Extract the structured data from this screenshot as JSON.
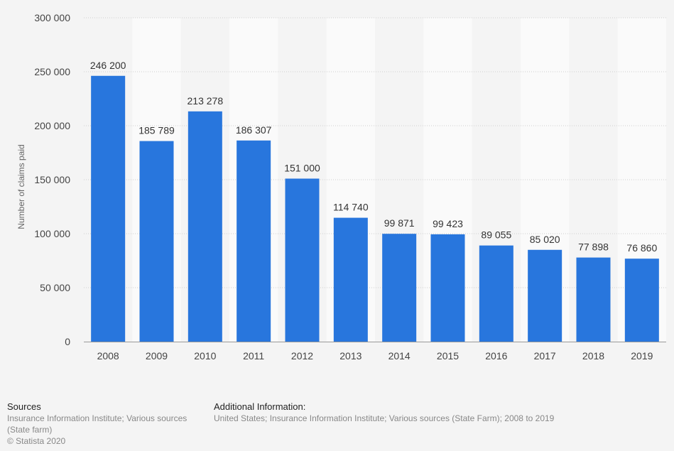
{
  "chart_data": {
    "type": "bar",
    "categories": [
      "2008",
      "2009",
      "2010",
      "2011",
      "2012",
      "2013",
      "2014",
      "2015",
      "2016",
      "2017",
      "2018",
      "2019"
    ],
    "values": [
      246200,
      185789,
      213278,
      186307,
      151000,
      114740,
      99871,
      99423,
      89055,
      85020,
      77898,
      76860
    ],
    "value_labels": [
      "246 200",
      "185 789",
      "213 278",
      "186 307",
      "151 000",
      "114 740",
      "99 871",
      "99 423",
      "89 055",
      "85 020",
      "77 898",
      "76 860"
    ],
    "ylabel": "Number of claims paid",
    "ylim": [
      0,
      300000
    ],
    "yticks": [
      0,
      50000,
      100000,
      150000,
      200000,
      250000,
      300000
    ],
    "ytick_labels": [
      "0",
      "50 000",
      "100 000",
      "150 000",
      "200 000",
      "250 000",
      "300 000"
    ],
    "grid": true,
    "bar_color": "#2876dd"
  },
  "footer": {
    "sources_title": "Sources",
    "sources_text": "Insurance Information Institute; Various sources (State farm)",
    "copyright": "© Statista 2020",
    "additional_title": "Additional Information:",
    "additional_text": "United States; Insurance Information Institute; Various sources (State Farm); 2008 to 2019"
  }
}
